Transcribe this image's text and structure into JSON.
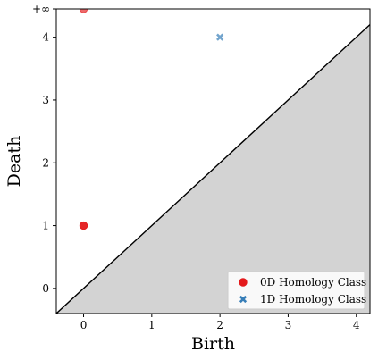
{
  "chart_data": {
    "type": "scatter",
    "title": "",
    "xlabel": "Birth",
    "ylabel": "Death",
    "xlim": [
      -0.4,
      4.2
    ],
    "ylim": [
      -0.4,
      4.45
    ],
    "x_ticks": [
      0,
      1,
      2,
      3,
      4
    ],
    "y_ticks": [
      0,
      1,
      2,
      3,
      4
    ],
    "infinity_value": 4.45,
    "infinity_label": "+∞",
    "diagonal": true,
    "shade_below_diagonal": true,
    "grid": false,
    "legend_position": "bottom-right",
    "series": [
      {
        "name": "0D Homology Class",
        "marker": "circle",
        "color": "#e41a1c",
        "points": [
          {
            "x": 0,
            "y": 1,
            "infinite": false
          },
          {
            "x": 0,
            "y": 4.45,
            "infinite": true
          }
        ]
      },
      {
        "name": "1D Homology Class",
        "marker": "x",
        "color": "#377eb8",
        "points": [
          {
            "x": 2,
            "y": 4,
            "infinite": false
          }
        ]
      }
    ]
  }
}
